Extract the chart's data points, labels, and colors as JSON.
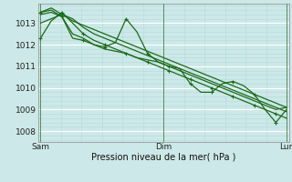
{
  "background_color": "#cce8e8",
  "grid_color_major": "#ffffff",
  "grid_color_minor": "#b8d8d8",
  "line_color": "#1a6b1a",
  "xlabel": "Pression niveau de la mer( hPa )",
  "xtick_labels": [
    "Sam",
    "Dim",
    "Lun"
  ],
  "xtick_positions": [
    0,
    48,
    96
  ],
  "ytick_labels": [
    "1008",
    "1009",
    "1010",
    "1011",
    "1012",
    "1013"
  ],
  "ytick_positions": [
    1008,
    1009,
    1010,
    1011,
    1012,
    1013
  ],
  "ylim": [
    1007.5,
    1013.9
  ],
  "xlim": [
    -1,
    97
  ],
  "series": [
    {
      "y": [
        1012.3,
        1013.1,
        1013.5,
        1013.0,
        1012.5,
        1012.2,
        1012.0,
        1011.8,
        1011.6,
        1011.4,
        1011.2,
        1011.0,
        1010.8,
        1010.6,
        1010.4,
        1010.2,
        1010.0,
        1009.8,
        1009.6,
        1009.4,
        1009.2,
        1009.0,
        1008.8,
        1008.6
      ],
      "markers": true,
      "marker_step": 2,
      "lw": 0.9
    },
    {
      "y": [
        1013.0,
        1013.2,
        1013.4,
        1013.2,
        1012.8,
        1012.5,
        1012.3,
        1012.1,
        1011.9,
        1011.7,
        1011.5,
        1011.3,
        1011.1,
        1010.9,
        1010.7,
        1010.5,
        1010.3,
        1010.1,
        1009.9,
        1009.7,
        1009.5,
        1009.3,
        1009.1,
        1008.9
      ],
      "markers": false,
      "lw": 0.9
    },
    {
      "y": [
        1013.5,
        1013.7,
        1013.4,
        1013.1,
        1012.9,
        1012.7,
        1012.5,
        1012.3,
        1012.1,
        1011.9,
        1011.7,
        1011.5,
        1011.3,
        1011.1,
        1010.9,
        1010.7,
        1010.5,
        1010.3,
        1010.1,
        1009.9,
        1009.7,
        1009.5,
        1009.3,
        1009.1
      ],
      "markers": false,
      "lw": 0.9
    },
    {
      "y": [
        1013.5,
        1013.6,
        1013.3,
        1012.3,
        1012.2,
        1012.0,
        1011.9,
        1012.1,
        1013.2,
        1012.6,
        1011.6,
        1011.2,
        1011.0,
        1010.9,
        1010.2,
        1009.8,
        1009.8,
        1010.2,
        1010.3,
        1010.1,
        1009.7,
        1009.0,
        1008.4,
        1009.0
      ],
      "markers": true,
      "marker_step": 2,
      "lw": 0.9
    },
    {
      "y": [
        1013.4,
        1013.5,
        1013.3,
        1012.5,
        1012.3,
        1012.0,
        1011.8,
        1011.7,
        1011.6,
        1011.4,
        1011.3,
        1011.2,
        1011.0,
        1010.8,
        1010.6,
        1010.4,
        1010.2,
        1010.0,
        1009.8,
        1009.6,
        1009.4,
        1009.2,
        1009.0,
        1009.1
      ],
      "markers": false,
      "lw": 0.9
    }
  ]
}
